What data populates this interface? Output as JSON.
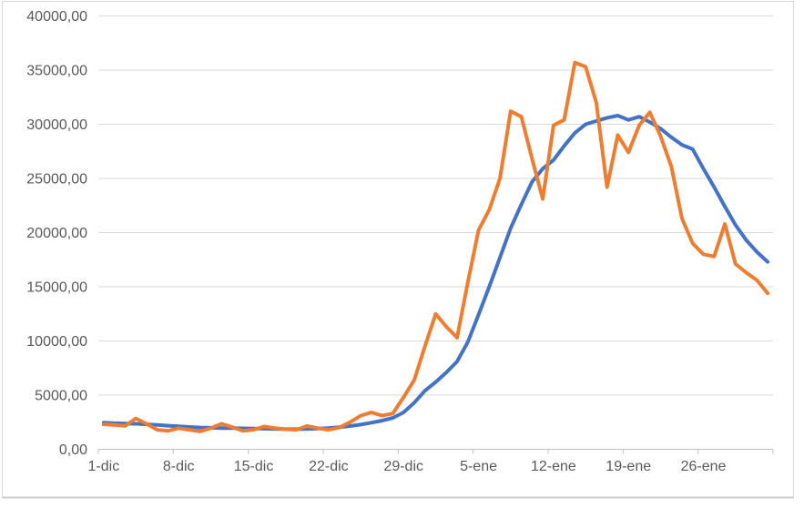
{
  "chart_data": {
    "type": "line",
    "title": "",
    "xlabel": "",
    "ylabel": "",
    "ylim": [
      0,
      40000
    ],
    "y_step": 5000,
    "grid": true,
    "legend": "none",
    "y_tick_labels": [
      "0,00",
      "5000,00",
      "10000,00",
      "15000,00",
      "20000,00",
      "25000,00",
      "30000,00",
      "35000,00",
      "40000,00"
    ],
    "x_tick_labels": [
      "1-dic",
      "8-dic",
      "15-dic",
      "22-dic",
      "29-dic",
      "5-ene",
      "12-ene",
      "19-ene",
      "26-ene"
    ],
    "x_label_every": 7,
    "categories": [
      "1-dic",
      "2-dic",
      "3-dic",
      "4-dic",
      "5-dic",
      "6-dic",
      "7-dic",
      "8-dic",
      "9-dic",
      "10-dic",
      "11-dic",
      "12-dic",
      "13-dic",
      "14-dic",
      "15-dic",
      "16-dic",
      "17-dic",
      "18-dic",
      "19-dic",
      "20-dic",
      "21-dic",
      "22-dic",
      "23-dic",
      "24-dic",
      "25-dic",
      "26-dic",
      "27-dic",
      "28-dic",
      "29-dic",
      "30-dic",
      "31-dic",
      "1-ene",
      "2-ene",
      "3-ene",
      "4-ene",
      "5-ene",
      "6-ene",
      "7-ene",
      "8-ene",
      "9-ene",
      "10-ene",
      "11-ene",
      "12-ene",
      "13-ene",
      "14-ene",
      "15-ene",
      "16-ene",
      "17-ene",
      "18-ene",
      "19-ene",
      "20-ene",
      "21-ene",
      "22-ene",
      "23-ene",
      "24-ene",
      "25-ene",
      "26-ene",
      "27-ene",
      "28-ene",
      "29-ene",
      "30-ene",
      "31-ene",
      "1-feb"
    ],
    "series": [
      {
        "name": "blue",
        "color": "#4472C4",
        "values": [
          2450,
          2400,
          2380,
          2350,
          2300,
          2250,
          2180,
          2120,
          2060,
          2010,
          1980,
          1960,
          1950,
          1930,
          1910,
          1900,
          1880,
          1860,
          1860,
          1880,
          1910,
          1960,
          2040,
          2140,
          2280,
          2450,
          2650,
          2900,
          3400,
          4300,
          5400,
          6200,
          7100,
          8100,
          9900,
          12400,
          15000,
          17700,
          20400,
          22600,
          24700,
          25900,
          26700,
          28000,
          29200,
          30000,
          30300,
          30600,
          30800,
          30400,
          30700,
          30200,
          29600,
          28800,
          28100,
          27700,
          25900,
          24200,
          22400,
          20700,
          19300,
          18200,
          17300
        ]
      },
      {
        "name": "orange",
        "color": "#ED7D31",
        "values": [
          2300,
          2250,
          2150,
          2850,
          2350,
          1800,
          1700,
          1950,
          1800,
          1650,
          1950,
          2350,
          2050,
          1700,
          1800,
          2100,
          1950,
          1850,
          1800,
          2150,
          1950,
          1800,
          2000,
          2500,
          3100,
          3400,
          3100,
          3300,
          4800,
          6400,
          9500,
          12500,
          11300,
          10300,
          15400,
          20200,
          22100,
          25000,
          31200,
          30700,
          26800,
          23100,
          29900,
          30400,
          35700,
          35300,
          32000,
          24200,
          29000,
          27400,
          29900,
          31100,
          28900,
          26100,
          21300,
          19000,
          18000,
          17800,
          20800,
          17100,
          16300,
          15600,
          14400
        ]
      }
    ]
  },
  "colors": {
    "background": "#ffffff",
    "chart_border": "#d9d9d9",
    "chart_border_bottom": "#cccccc",
    "gridline": "#d9d9d9",
    "axis_line": "#bfbfbf",
    "tick_label": "#595959",
    "series_blue": "#4472C4",
    "series_orange": "#ED7D31"
  }
}
